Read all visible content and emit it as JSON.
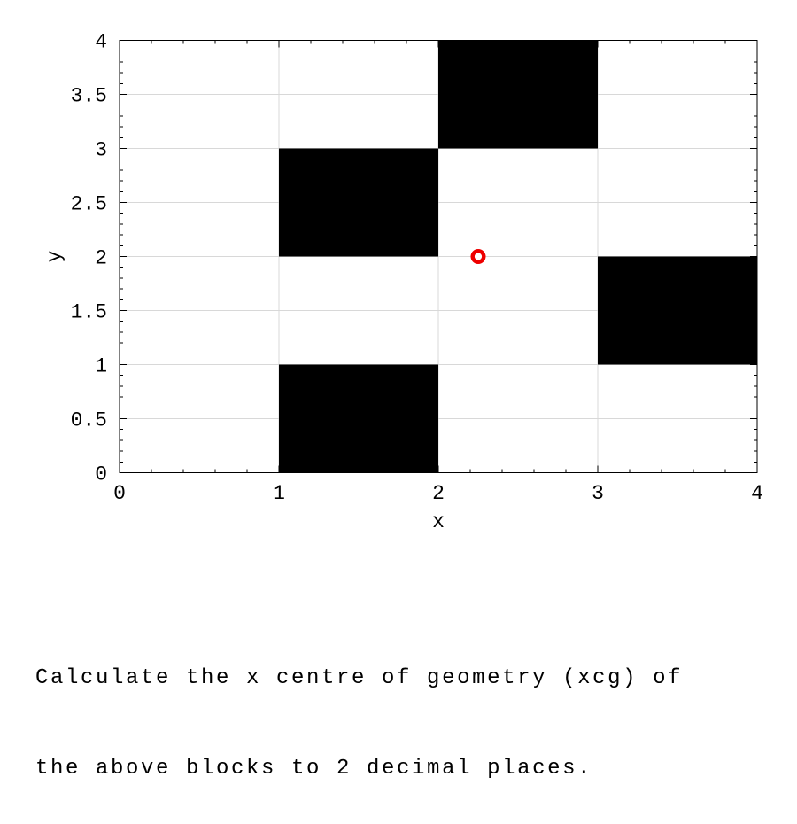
{
  "page": {
    "background": "#ffffff"
  },
  "chart_data": {
    "type": "heatmap",
    "title": "",
    "xlabel": "x",
    "ylabel": "y",
    "xlim": [
      0,
      4
    ],
    "ylim": [
      0,
      4
    ],
    "x_major_ticks": [
      0,
      1,
      2,
      3,
      4
    ],
    "x_tick_labels": [
      "0",
      "1",
      "2",
      "3",
      "4"
    ],
    "y_major_ticks": [
      0,
      0.5,
      1,
      1.5,
      2,
      2.5,
      3,
      3.5,
      4
    ],
    "y_tick_labels": [
      "0",
      "0.5",
      "1",
      "1.5",
      "2",
      "2.5",
      "3",
      "3.5",
      "4"
    ],
    "x_minor_step": 0.2,
    "y_minor_step": 0.1,
    "grid": true,
    "legend": false,
    "blocks": [
      {
        "x0": 1,
        "y0": 0,
        "x1": 2,
        "y1": 1
      },
      {
        "x0": 1,
        "y0": 2,
        "x1": 2,
        "y1": 3
      },
      {
        "x0": 2,
        "y0": 3,
        "x1": 3,
        "y1": 4
      },
      {
        "x0": 3,
        "y0": 1,
        "x1": 4,
        "y1": 2
      }
    ],
    "marker": {
      "x": 2.25,
      "y": 2,
      "style": "open-circle"
    },
    "colors": {
      "block": "#000000",
      "marker": "#ee0000",
      "marker_fill": "#ffffff",
      "grid": "#d8d8d8",
      "axis": "#000000",
      "text": "#000000"
    }
  },
  "question": {
    "lines": [
      "Calculate the x centre of geometry (xcg) of",
      "the above blocks to 2 decimal places."
    ]
  }
}
